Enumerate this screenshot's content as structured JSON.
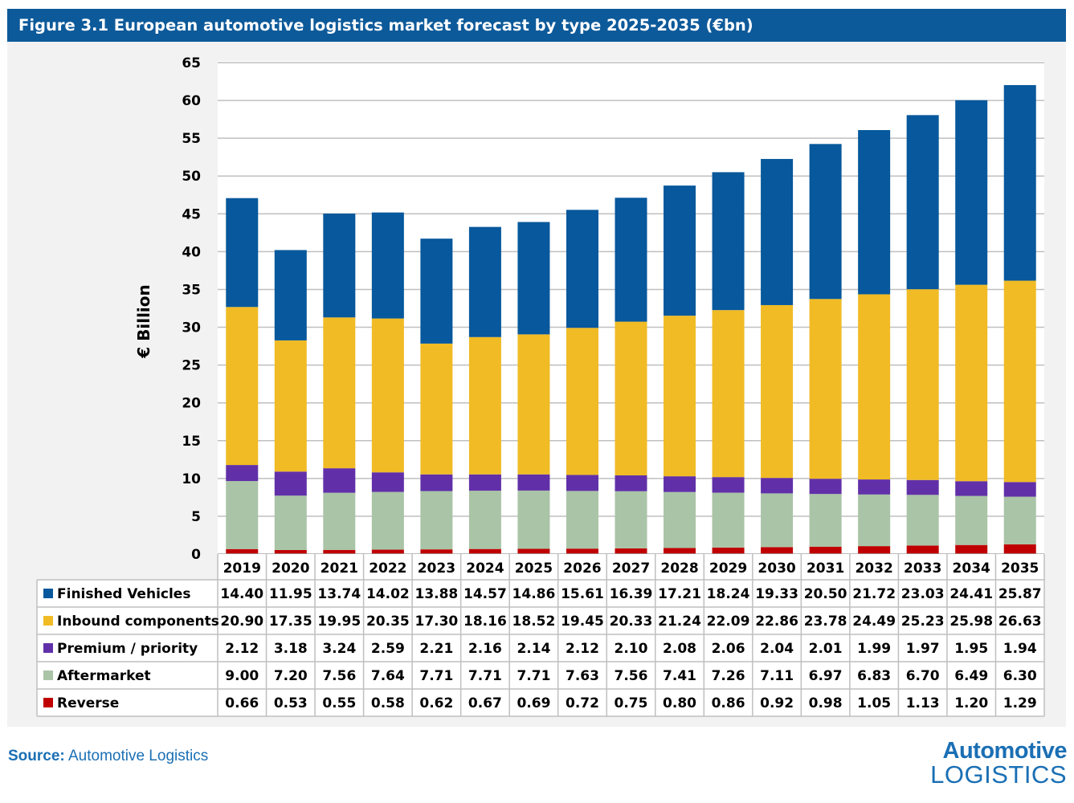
{
  "title": "Figure 3.1 European automotive logistics market forecast by type 2025-2035 (€bn)",
  "source_label": "Source:",
  "source_text": "Automotive Logistics",
  "logo": {
    "line1": "Automotive",
    "line2": "LOGISTICS"
  },
  "chart_data": {
    "type": "bar",
    "stacked": true,
    "title": "Figure 3.1 European automotive logistics market forecast by type 2025-2035 (€bn)",
    "ylabel": "€ Billion",
    "xlabel": "",
    "ylim": [
      0,
      65
    ],
    "yticks": [
      0,
      5,
      10,
      15,
      20,
      25,
      30,
      35,
      40,
      45,
      50,
      55,
      60,
      65
    ],
    "grid": true,
    "legend": "data-table-left",
    "categories": [
      "2019",
      "2020",
      "2021",
      "2022",
      "2023",
      "2024",
      "2025",
      "2026",
      "2027",
      "2028",
      "2029",
      "2030",
      "2031",
      "2032",
      "2033",
      "2034",
      "2035"
    ],
    "series": [
      {
        "name": "Reverse",
        "color": "#c00000",
        "values": [
          0.66,
          0.53,
          0.55,
          0.58,
          0.62,
          0.67,
          0.69,
          0.72,
          0.75,
          0.8,
          0.86,
          0.92,
          0.98,
          1.05,
          1.13,
          1.2,
          1.29
        ],
        "labels": [
          "0.66",
          "0.53",
          "0.55",
          "0.58",
          "0.62",
          "0.67",
          "0.69",
          "0.72",
          "0.75",
          "0.80",
          "0.86",
          "0.92",
          "0.98",
          "1.05",
          "1.13",
          "1.20",
          "1.29"
        ]
      },
      {
        "name": "Aftermarket",
        "color": "#a9c4a6",
        "values": [
          9.0,
          7.2,
          7.56,
          7.64,
          7.71,
          7.71,
          7.71,
          7.63,
          7.56,
          7.41,
          7.26,
          7.11,
          6.97,
          6.83,
          6.7,
          6.49,
          6.3
        ],
        "labels": [
          "9.00",
          "7.20",
          "7.56",
          "7.64",
          "7.71",
          "7.71",
          "7.71",
          "7.63",
          "7.56",
          "7.41",
          "7.26",
          "7.11",
          "6.97",
          "6.83",
          "6.70",
          "6.49",
          "6.30"
        ]
      },
      {
        "name": "Premium / priority",
        "color": "#6130a8",
        "values": [
          2.12,
          3.18,
          3.24,
          2.59,
          2.21,
          2.16,
          2.14,
          2.12,
          2.1,
          2.08,
          2.06,
          2.04,
          2.01,
          1.99,
          1.97,
          1.95,
          1.94
        ],
        "labels": [
          "2.12",
          "3.18",
          "3.24",
          "2.59",
          "2.21",
          "2.16",
          "2.14",
          "2.12",
          "2.10",
          "2.08",
          "2.06",
          "2.04",
          "2.01",
          "1.99",
          "1.97",
          "1.95",
          "1.94"
        ]
      },
      {
        "name": "Inbound components",
        "color": "#f0bb25",
        "values": [
          20.9,
          17.35,
          19.95,
          20.35,
          17.3,
          18.16,
          18.52,
          19.45,
          20.33,
          21.24,
          22.09,
          22.86,
          23.78,
          24.49,
          25.23,
          25.98,
          26.63
        ],
        "labels": [
          "20.90",
          "17.35",
          "19.95",
          "20.35",
          "17.30",
          "18.16",
          "18.52",
          "19.45",
          "20.33",
          "21.24",
          "22.09",
          "22.86",
          "23.78",
          "24.49",
          "25.23",
          "25.98",
          "26.63"
        ]
      },
      {
        "name": "Finished Vehicles",
        "color": "#07589c",
        "values": [
          14.4,
          11.95,
          13.74,
          14.02,
          13.88,
          14.57,
          14.86,
          15.61,
          16.39,
          17.21,
          18.24,
          19.33,
          20.5,
          21.72,
          23.03,
          24.41,
          25.87
        ],
        "labels": [
          "14.40",
          "11.95",
          "13.74",
          "14.02",
          "13.88",
          "14.57",
          "14.86",
          "15.61",
          "16.39",
          "17.21",
          "18.24",
          "19.33",
          "20.50",
          "21.72",
          "23.03",
          "24.41",
          "25.87"
        ]
      }
    ],
    "table_row_order": [
      "Finished Vehicles",
      "Inbound components",
      "Premium / priority",
      "Aftermarket",
      "Reverse"
    ]
  }
}
